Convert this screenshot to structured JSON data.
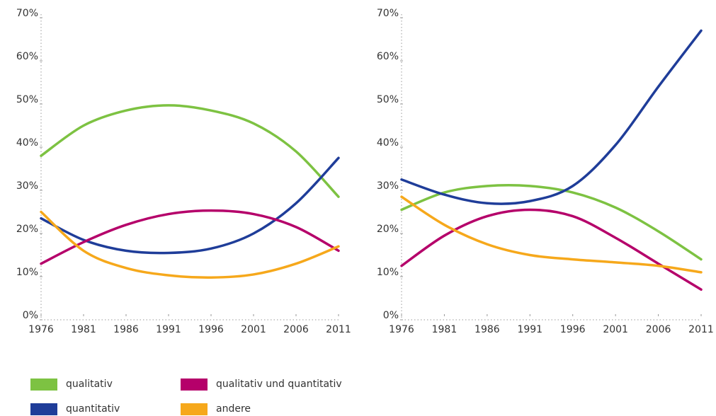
{
  "chart_data": [
    {
      "type": "line",
      "x": [
        1976,
        1981,
        1986,
        1991,
        1996,
        2001,
        2006,
        2011
      ],
      "xlim": [
        1976,
        2011
      ],
      "xticks": [
        1976,
        1981,
        1986,
        1991,
        1996,
        2001,
        2006,
        2011
      ],
      "ylim": [
        0,
        70
      ],
      "yticks": [
        {
          "value": 0,
          "label": "0%"
        },
        {
          "value": 10,
          "label": "10%"
        },
        {
          "value": 20,
          "label": "20%"
        },
        {
          "value": 30,
          "label": "30%"
        },
        {
          "value": 40,
          "label": "40%"
        },
        {
          "value": 50,
          "label": "50%"
        },
        {
          "value": 60,
          "label": "60%"
        },
        {
          "value": 70,
          "label": "70%"
        }
      ],
      "series": [
        {
          "name": "qualitativ",
          "color": "#7dc242",
          "values": [
            38,
            45,
            48.5,
            49.7,
            48.5,
            45.5,
            39,
            28.5
          ]
        },
        {
          "name": "quantitativ",
          "color": "#1f3d99",
          "values": [
            23.5,
            18.5,
            16,
            15.5,
            16.5,
            20,
            27,
            37.5
          ]
        },
        {
          "name": "qualitativ und quantitativ",
          "color": "#b5006a",
          "values": [
            13,
            18,
            22,
            24.5,
            25.3,
            24.5,
            21.5,
            16
          ]
        },
        {
          "name": "andere",
          "color": "#f6a81b",
          "values": [
            25,
            16,
            12,
            10.3,
            9.8,
            10.5,
            13,
            17
          ]
        }
      ]
    },
    {
      "type": "line",
      "x": [
        1976,
        1981,
        1986,
        1991,
        1996,
        2001,
        2006,
        2011
      ],
      "xlim": [
        1976,
        2011
      ],
      "xticks": [
        1976,
        1981,
        1986,
        1991,
        1996,
        2001,
        2006,
        2011
      ],
      "ylim": [
        0,
        70
      ],
      "yticks": [
        {
          "value": 0,
          "label": "0%"
        },
        {
          "value": 10,
          "label": "10%"
        },
        {
          "value": 20,
          "label": "20%"
        },
        {
          "value": 30,
          "label": "30%"
        },
        {
          "value": 40,
          "label": "40%"
        },
        {
          "value": 50,
          "label": "50%"
        },
        {
          "value": 60,
          "label": "60%"
        },
        {
          "value": 70,
          "label": "70%"
        }
      ],
      "series": [
        {
          "color": "#7dc242",
          "values": [
            25.5,
            29.5,
            31,
            31,
            29.5,
            26,
            20.5,
            14
          ]
        },
        {
          "color": "#1f3d99",
          "values": [
            32.5,
            29,
            27,
            27.5,
            31,
            40.5,
            54,
            67
          ]
        },
        {
          "color": "#b5006a",
          "values": [
            12.5,
            19.5,
            24,
            25.5,
            24,
            19,
            13,
            7
          ]
        },
        {
          "color": "#f6a81b",
          "values": [
            28.5,
            22,
            17.5,
            15,
            14,
            13.3,
            12.5,
            11
          ]
        }
      ]
    }
  ]
}
